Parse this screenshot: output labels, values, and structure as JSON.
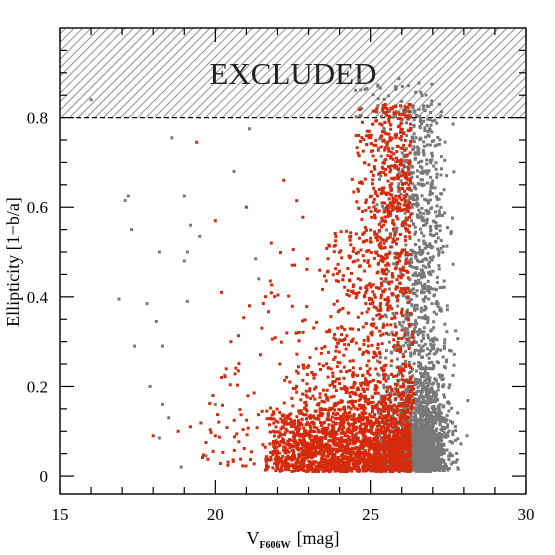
{
  "chart_data": {
    "type": "scatter",
    "title": "",
    "xlabel": "V",
    "xlabel_subscript": "F606W",
    "xlabel_unit": "[mag]",
    "ylabel": "Ellipticity [1−b/a]",
    "xlim": [
      15,
      30
    ],
    "ylim": [
      -0.04,
      1.0
    ],
    "xticks": [
      15,
      20,
      25,
      30
    ],
    "xtick_labels": [
      "15",
      "20",
      "25",
      "30"
    ],
    "yticks": [
      0,
      0.2,
      0.4,
      0.6,
      0.8
    ],
    "ytick_labels": [
      "0",
      "0.2",
      "0.4",
      "0.6",
      "0.8"
    ],
    "excluded_region": {
      "y_from": 0.8,
      "y_to": 1.0,
      "label": "EXCLUDED"
    },
    "grid": false,
    "series": [
      {
        "color": "#787878",
        "description_points": "dense cloud concentrated at V≈25.5–27.5, ellipticity 0.01–0.85, plus sparse bright outliers",
        "points": [
          [
            16.0,
            0.84
          ],
          [
            16.9,
            0.395
          ],
          [
            17.1,
            0.615
          ],
          [
            17.2,
            0.625
          ],
          [
            17.3,
            0.55
          ],
          [
            17.4,
            0.29
          ],
          [
            17.8,
            0.385
          ],
          [
            18.1,
            0.345
          ],
          [
            18.3,
            0.29
          ],
          [
            18.2,
            0.5
          ],
          [
            18.6,
            0.755
          ],
          [
            19.0,
            0.625
          ],
          [
            19.0,
            0.48
          ],
          [
            19.1,
            0.5
          ],
          [
            19.2,
            0.56
          ],
          [
            19.5,
            0.535
          ],
          [
            19.1,
            0.39
          ],
          [
            18.2,
            0.085
          ],
          [
            18.9,
            0.02
          ],
          [
            19.7,
            0.045
          ],
          [
            20.6,
            0.68
          ],
          [
            21.1,
            0.775
          ],
          [
            20.3,
            0.225
          ],
          [
            21.3,
            0.485
          ],
          [
            21.4,
            0.44
          ],
          [
            18.5,
            0.13
          ],
          [
            18.3,
            0.16
          ],
          [
            17.9,
            0.2
          ],
          [
            20.0,
            0.16
          ],
          [
            28.1,
            0.09
          ]
        ]
      },
      {
        "color": "#d42b0c",
        "description_points": "dense cloud concentrated at V≈21–26.5, ellipticity 0.01–0.8, plus sparse outliers",
        "points": [
          [
            18.8,
            0.1
          ],
          [
            19.2,
            0.11
          ],
          [
            19.4,
            0.745
          ],
          [
            20.0,
            0.57
          ],
          [
            20.2,
            0.41
          ],
          [
            20.5,
            0.3
          ],
          [
            20.2,
            0.22
          ],
          [
            19.7,
            0.075
          ],
          [
            20.0,
            0.09
          ],
          [
            18.0,
            0.09
          ],
          [
            21.0,
            0.6
          ],
          [
            21.1,
            0.38
          ],
          [
            21.5,
            0.33
          ],
          [
            21.8,
            0.52
          ],
          [
            22.2,
            0.66
          ]
        ]
      }
    ]
  }
}
